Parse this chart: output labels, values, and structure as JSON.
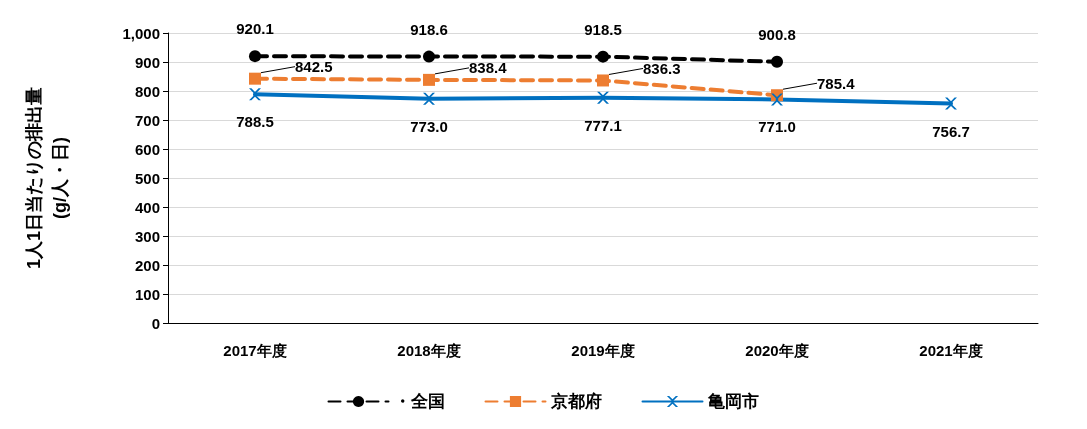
{
  "chart_data": {
    "type": "line",
    "ylabel": "1人1日当たりの排出量\n(g/人・日)",
    "categories": [
      "2017年度",
      "2018年度",
      "2019年度",
      "2020年度",
      "2021年度"
    ],
    "series": [
      {
        "name": "・全国",
        "color": "#000000",
        "marker": "circle",
        "line_style": "dashed",
        "values": [
          920.1,
          918.6,
          918.5,
          900.8,
          null
        ],
        "value_labels": [
          "920.1",
          "918.6",
          "918.5",
          "900.8",
          null
        ]
      },
      {
        "name": "京都府",
        "color": "#ed7d31",
        "marker": "square",
        "line_style": "dashed",
        "values": [
          842.5,
          838.4,
          836.3,
          785.4,
          null
        ],
        "value_labels": [
          "842.5",
          "838.4",
          "836.3",
          "785.4",
          null
        ]
      },
      {
        "name": "亀岡市",
        "color": "#0070c0",
        "marker": "cross",
        "line_style": "solid",
        "values": [
          788.5,
          773.0,
          777.1,
          771.0,
          756.7
        ],
        "value_labels": [
          "788.5",
          "773.0",
          "777.1",
          "771.0",
          "756.7"
        ]
      }
    ],
    "ylim": [
      0,
      1000
    ],
    "yticks": [
      0,
      100,
      200,
      300,
      400,
      500,
      600,
      700,
      800,
      900,
      {
        "value": 1000,
        "label": "1,000"
      }
    ],
    "grid": "y",
    "legend": "bottom"
  }
}
